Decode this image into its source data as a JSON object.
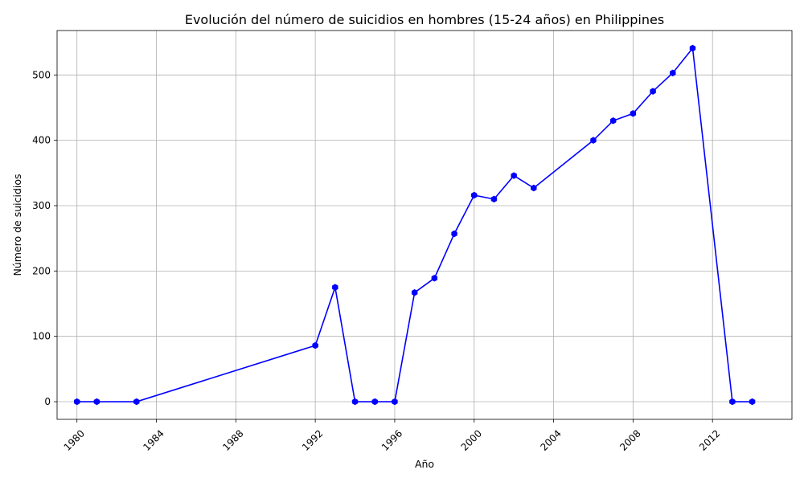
{
  "chart_data": {
    "type": "line",
    "title": "Evolución del número de suicidios en hombres (15-24 años) en Philippines",
    "xlabel": "Año",
    "ylabel": "Número de suicidios",
    "xlim": [
      1979,
      2016
    ],
    "ylim": [
      -27,
      568
    ],
    "x_ticks": [
      1980,
      1984,
      1988,
      1992,
      1996,
      2000,
      2004,
      2008,
      2012
    ],
    "y_ticks": [
      0,
      100,
      200,
      300,
      400,
      500
    ],
    "grid": true,
    "color": "#0000ff",
    "series": [
      {
        "x": [
          1980,
          1981,
          1983,
          1992,
          1993,
          1994,
          1995,
          1996,
          1997,
          1998,
          1999,
          2000,
          2001,
          2002,
          2003,
          2006,
          2007,
          2008,
          2009,
          2010,
          2011,
          2013,
          2014
        ],
        "values": [
          0,
          0,
          0,
          86,
          175,
          0,
          0,
          0,
          167,
          189,
          257,
          316,
          310,
          346,
          327,
          400,
          430,
          441,
          475,
          503,
          541,
          0,
          0
        ]
      }
    ]
  }
}
